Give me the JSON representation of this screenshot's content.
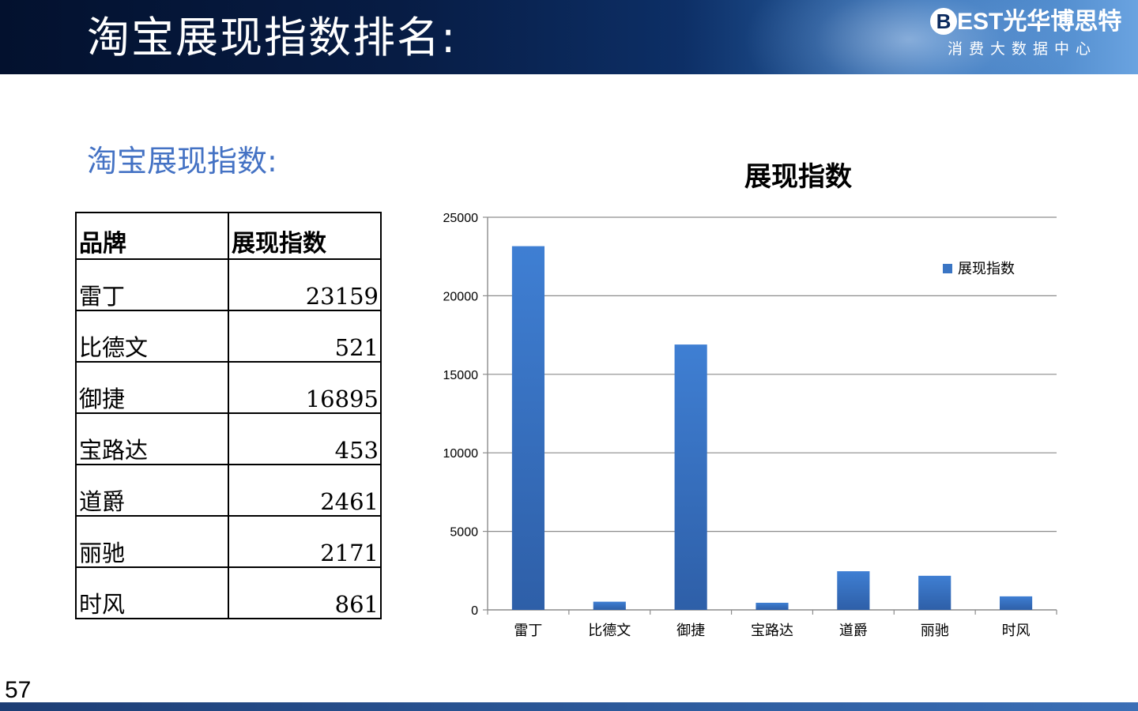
{
  "header": {
    "title": "淘宝展现指数排名:",
    "logo_letter": "B",
    "logo_brand": "EST光华博思特",
    "logo_sub": "消费大数据中心"
  },
  "section_label": "淘宝展现指数:",
  "table": {
    "headers": [
      "品牌",
      "展现指数"
    ],
    "rows": [
      {
        "brand": "雷丁",
        "value": "23159"
      },
      {
        "brand": "比德文",
        "value": "521"
      },
      {
        "brand": "御捷",
        "value": "16895"
      },
      {
        "brand": "宝路达",
        "value": "453"
      },
      {
        "brand": "道爵",
        "value": "2461"
      },
      {
        "brand": "丽驰",
        "value": "2171"
      },
      {
        "brand": "时风",
        "value": "861"
      }
    ]
  },
  "chart_data": {
    "type": "bar",
    "title": "展现指数",
    "categories": [
      "雷丁",
      "比德文",
      "御捷",
      "宝路达",
      "道爵",
      "丽驰",
      "时风"
    ],
    "series": [
      {
        "name": "展现指数",
        "values": [
          23159,
          521,
          16895,
          453,
          2461,
          2171,
          861
        ],
        "color": "#3a75c4"
      }
    ],
    "ylim": [
      0,
      25000
    ],
    "yticks": [
      0,
      5000,
      10000,
      15000,
      20000,
      25000
    ],
    "grid": true,
    "legend": "top-right",
    "xlabel": "",
    "ylabel": ""
  },
  "slide_number": "57"
}
